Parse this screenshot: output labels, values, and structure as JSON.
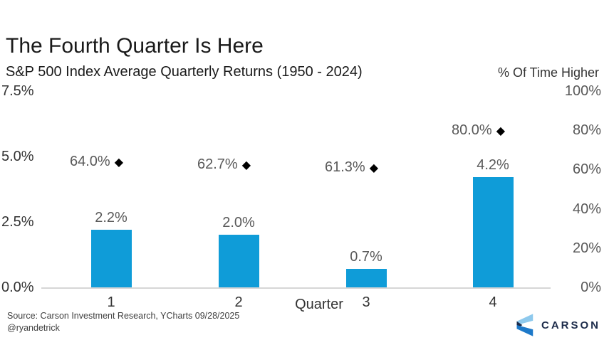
{
  "header": {
    "title": "The Fourth Quarter Is Here",
    "subtitle": "S&P 500 Index Average Quarterly Returns (1950 - 2024)",
    "right_axis_title": "% Of Time Higher"
  },
  "footer": {
    "source": "Source: Carson Investment Research, YCharts 09/28/2025",
    "handle": "@ryandetrick",
    "brand": "CARSON"
  },
  "colors": {
    "bar_blue": "#0f9cd8",
    "diamond_black": "#000000",
    "gray_label": "#595959",
    "dark_text": "#333333",
    "baseline_gray": "#d6d6d6",
    "brand_navy": "#1c2b4a",
    "logo_light_blue": "#8ec9ed",
    "logo_mid_blue": "#1d79c9"
  },
  "icons": {
    "diamond": "◆",
    "carson_mark": "carson-logo-icon"
  },
  "chart_data": {
    "type": "bar",
    "title": "The Fourth Quarter Is Here",
    "subtitle": "S&P 500 Index Average Quarterly Returns (1950 - 2024)",
    "xlabel": "Quarter",
    "categories": [
      "1",
      "2",
      "3",
      "4"
    ],
    "series": [
      {
        "name": "Average Quarterly Return",
        "type": "bar",
        "axis": "left",
        "values": [
          2.2,
          2.0,
          0.7,
          4.2
        ],
        "labels": [
          "2.2%",
          "2.0%",
          "0.7%",
          "4.2%"
        ]
      },
      {
        "name": "% Of Time Higher",
        "type": "point",
        "axis": "right",
        "values": [
          64.0,
          62.7,
          61.3,
          80.0
        ],
        "labels": [
          "64.0%",
          "62.7%",
          "61.3%",
          "80.0%"
        ]
      }
    ],
    "left_axis": {
      "tick_labels": [
        "0.0%",
        "2.5%",
        "5.0%",
        "7.5%"
      ],
      "tick_values": [
        0,
        2.5,
        5,
        7.5
      ],
      "range": [
        0,
        7.5
      ]
    },
    "right_axis": {
      "tick_labels": [
        "0%",
        "20%",
        "40%",
        "60%",
        "80%",
        "100%"
      ],
      "tick_values": [
        0,
        20,
        40,
        60,
        80,
        100
      ],
      "range": [
        0,
        100
      ]
    },
    "grid": false,
    "legend": false
  }
}
